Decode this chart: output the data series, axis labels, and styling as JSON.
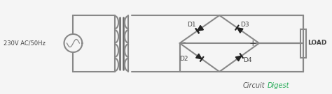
{
  "bg_color": "#f5f5f5",
  "line_color": "#888888",
  "line_width": 1.5,
  "text_color": "#444444",
  "label_230v": "230V AC/50Hz",
  "label_load": "LOAD",
  "label_d1": "D1",
  "label_d2": "D2",
  "label_d3": "D3",
  "label_d4": "D4",
  "label_circuit": "Circuit",
  "label_digest": "Digest",
  "circuit_color": "#555555",
  "digest_color": "#22aa55",
  "diode_color": "#222222",
  "plus_minus_color": "#555555",
  "tilde_color": "#888888"
}
